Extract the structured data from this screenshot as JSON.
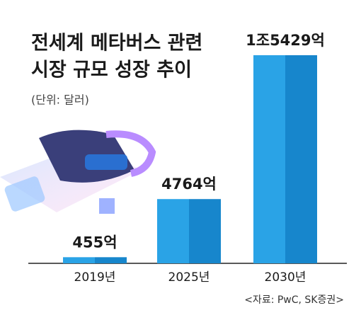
{
  "chart_data": {
    "type": "bar",
    "title": [
      "전세계 메타버스 관련",
      "시장 규모 성장 추이"
    ],
    "subtitle": "(단위: 달러)",
    "source": "<자료: PwC, SK증권>",
    "categories": [
      "2019년",
      "2025년",
      "2030년"
    ],
    "values": [
      455,
      4764,
      15429
    ],
    "value_labels": [
      "455억",
      "4764억",
      "1조5429억"
    ],
    "colors": [
      "#2aa3e6",
      "#1786cc"
    ]
  }
}
